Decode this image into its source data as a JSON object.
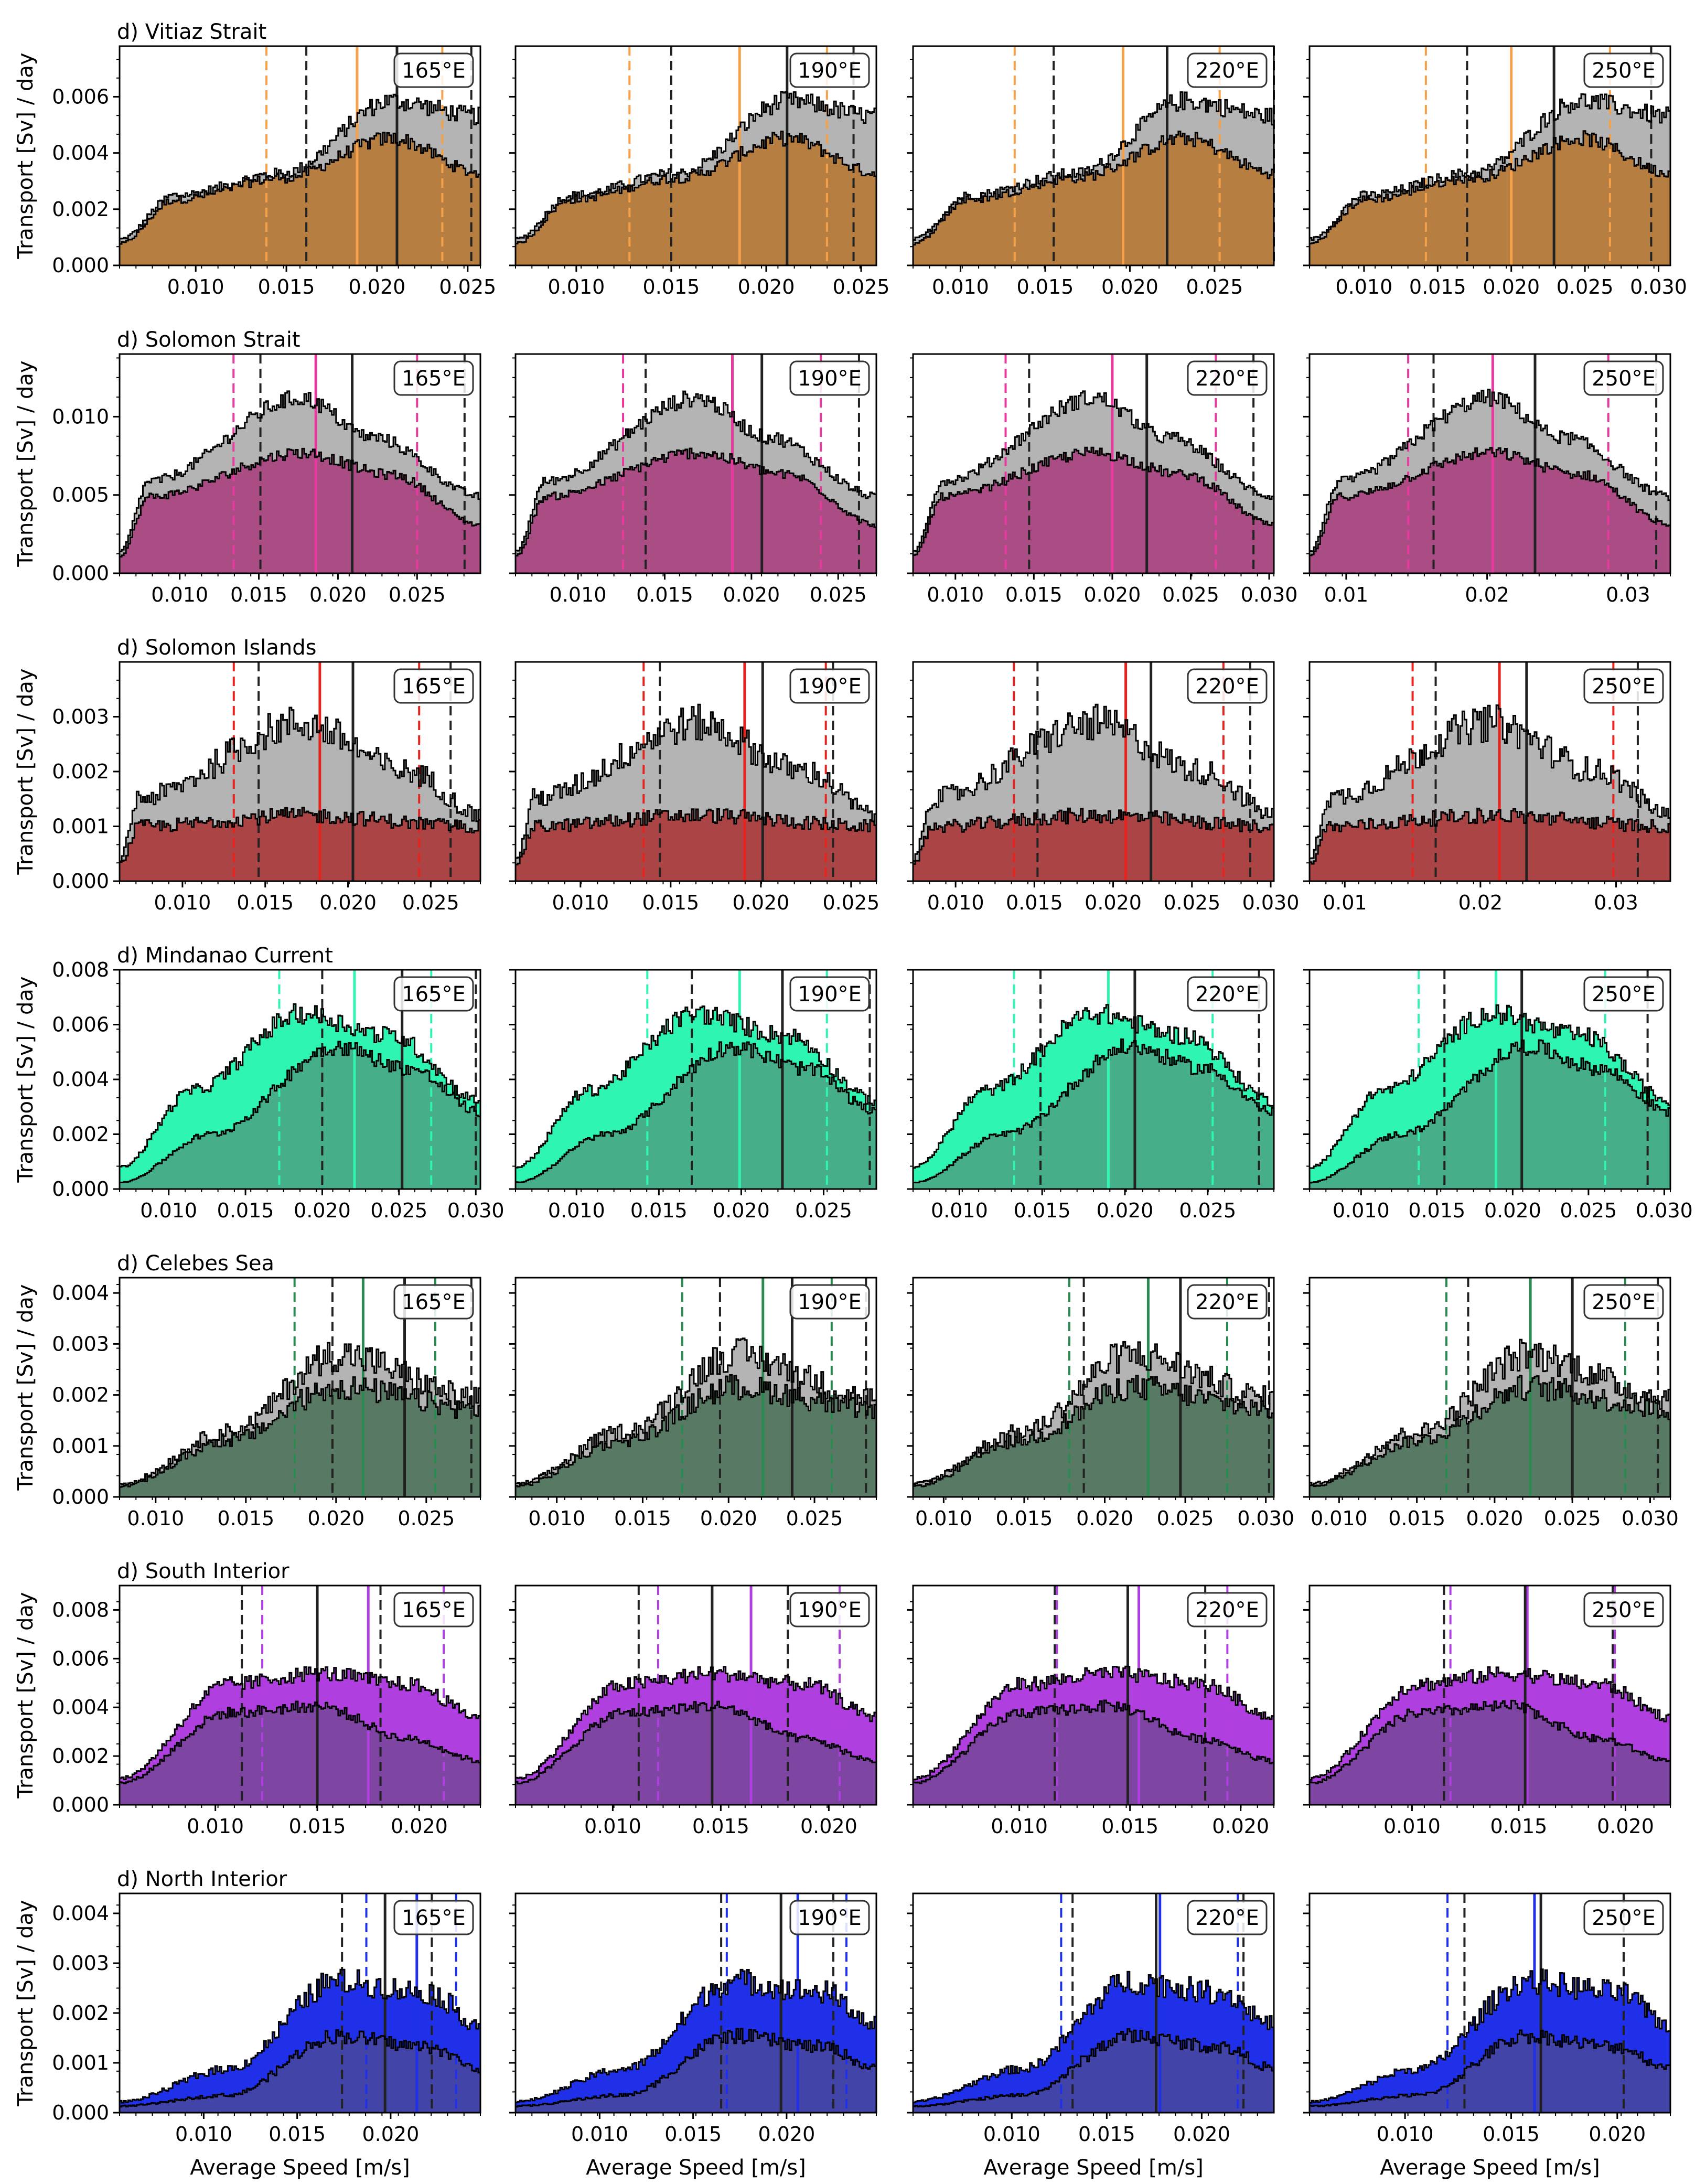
{
  "figure": {
    "shared_ylabel": "Transport [Sv] / day",
    "shared_xlabel": "Average Speed [m/s]",
    "column_labels": [
      "165°E",
      "190°E",
      "220°E",
      "250°E"
    ],
    "colors": {
      "grey_fill": "#b4b4b4",
      "outline": "#000000",
      "ref_line": "#222222"
    }
  },
  "chart_data": [
    {
      "type": "area",
      "row": 0,
      "title": "d) Vitiaz Strait",
      "color": "#f5a14a",
      "mix": "#b77e42",
      "yticks": [
        "0.000",
        "0.002",
        "0.004",
        "0.006"
      ],
      "ylim": [
        0,
        0.0078
      ],
      "panels": [
        {
          "label": "165°E",
          "xlim": [
            0.0058,
            0.0257
          ],
          "xticks": [
            "0.010",
            "0.015",
            "0.020",
            "0.025"
          ],
          "c_lines": [
            0.0139,
            0.0189,
            0.0236
          ],
          "k_lines": [
            0.0161,
            0.0211,
            0.0252
          ]
        },
        {
          "label": "190°E",
          "xlim": [
            0.0068,
            0.0258
          ],
          "xticks": [
            "0.010",
            "0.015",
            "0.020",
            "0.025"
          ],
          "c_lines": [
            0.0128,
            0.0186,
            0.0232
          ],
          "k_lines": [
            0.015,
            0.0211,
            0.0246
          ]
        },
        {
          "label": "220°E",
          "xlim": [
            0.0072,
            0.0285
          ],
          "xticks": [
            "0.010",
            "0.015",
            "0.020",
            "0.025"
          ],
          "c_lines": [
            0.0132,
            0.0196,
            0.0253
          ],
          "k_lines": [
            0.0155,
            0.0222,
            0.0285
          ]
        },
        {
          "label": "250°E",
          "xlim": [
            0.0063,
            0.0308
          ],
          "xticks": [
            "0.010",
            "0.015",
            "0.020",
            "0.025",
            "0.030"
          ],
          "c_lines": [
            0.0142,
            0.02,
            0.0267
          ],
          "k_lines": [
            0.017,
            0.0229,
            0.0295
          ]
        }
      ]
    },
    {
      "type": "area",
      "row": 1,
      "title": "d) Solomon Strait",
      "color": "#e8399e",
      "mix": "#ab4d85",
      "yticks": [
        "0.000",
        "0.005",
        "0.010"
      ],
      "ylim": [
        0,
        0.014
      ],
      "panels": [
        {
          "label": "165°E",
          "xlim": [
            0.0062,
            0.029
          ],
          "xticks": [
            "0.010",
            "0.015",
            "0.020",
            "0.025"
          ],
          "c_lines": [
            0.0134,
            0.0186,
            0.025
          ],
          "k_lines": [
            0.0151,
            0.0209,
            0.028
          ]
        },
        {
          "label": "190°E",
          "xlim": [
            0.0064,
            0.0272
          ],
          "xticks": [
            "0.010",
            "0.015",
            "0.020",
            "0.025"
          ],
          "c_lines": [
            0.0126,
            0.0189,
            0.024
          ],
          "k_lines": [
            0.0139,
            0.0206,
            0.0262
          ]
        },
        {
          "label": "220°E",
          "xlim": [
            0.0073,
            0.0303
          ],
          "xticks": [
            "0.010",
            "0.015",
            "0.020",
            "0.025",
            "0.030"
          ],
          "c_lines": [
            0.0132,
            0.02,
            0.0266
          ],
          "k_lines": [
            0.0147,
            0.0222,
            0.029
          ]
        },
        {
          "label": "250°E",
          "xlim": [
            0.0074,
            0.033
          ],
          "xticks": [
            "0.01",
            "0.02",
            "0.03"
          ],
          "c_lines": [
            0.0144,
            0.0204,
            0.0286
          ],
          "k_lines": [
            0.0162,
            0.0234,
            0.032
          ]
        }
      ]
    },
    {
      "type": "area",
      "row": 2,
      "title": "d) Solomon Islands",
      "color": "#e8231e",
      "mix": "#ab4545",
      "yticks": [
        "0.000",
        "0.001",
        "0.002",
        "0.003"
      ],
      "ylim": [
        0,
        0.004
      ],
      "panels": [
        {
          "label": "165°E",
          "xlim": [
            0.0062,
            0.028
          ],
          "xticks": [
            "0.010",
            "0.015",
            "0.020",
            "0.025"
          ],
          "c_lines": [
            0.0131,
            0.0183,
            0.0243
          ],
          "k_lines": [
            0.0146,
            0.0203,
            0.0262
          ]
        },
        {
          "label": "190°E",
          "xlim": [
            0.0064,
            0.0264
          ],
          "xticks": [
            "0.010",
            "0.015",
            "0.020",
            "0.025"
          ],
          "c_lines": [
            0.0135,
            0.0191,
            0.0236
          ],
          "k_lines": [
            0.0144,
            0.0201,
            0.024
          ]
        },
        {
          "label": "220°E",
          "xlim": [
            0.0073,
            0.0302
          ],
          "xticks": [
            "0.010",
            "0.015",
            "0.020",
            "0.025",
            "0.030"
          ],
          "c_lines": [
            0.0137,
            0.0208,
            0.027
          ],
          "k_lines": [
            0.0152,
            0.0224,
            0.0287
          ]
        },
        {
          "label": "250°E",
          "xlim": [
            0.0074,
            0.034
          ],
          "xticks": [
            "0.01",
            "0.02",
            "0.03"
          ],
          "c_lines": [
            0.015,
            0.0214,
            0.0298
          ],
          "k_lines": [
            0.0167,
            0.0234,
            0.0316
          ]
        }
      ]
    },
    {
      "type": "area",
      "row": 3,
      "title": "d) Mindanao Current",
      "color": "#2ef5b1",
      "mix": "#46ae88",
      "yticks": [
        "0.000",
        "0.002",
        "0.004",
        "0.006",
        "0.008"
      ],
      "ylim": [
        0,
        0.008
      ],
      "panels": [
        {
          "label": "165°E",
          "xlim": [
            0.0068,
            0.0303
          ],
          "xticks": [
            "0.010",
            "0.015",
            "0.020",
            "0.025",
            "0.030"
          ],
          "c_lines": [
            0.0172,
            0.0221,
            0.0271
          ],
          "k_lines": [
            0.02,
            0.0252,
            0.03
          ]
        },
        {
          "label": "190°E",
          "xlim": [
            0.0063,
            0.0282
          ],
          "xticks": [
            "0.010",
            "0.015",
            "0.020",
            "0.025"
          ],
          "c_lines": [
            0.0143,
            0.0199,
            0.0252
          ],
          "k_lines": [
            0.017,
            0.0225,
            0.0278
          ]
        },
        {
          "label": "220°E",
          "xlim": [
            0.0072,
            0.029
          ],
          "xticks": [
            "0.010",
            "0.015",
            "0.020",
            "0.025"
          ],
          "c_lines": [
            0.0133,
            0.019,
            0.0253
          ],
          "k_lines": [
            0.0149,
            0.0206,
            0.0281
          ]
        },
        {
          "label": "250°E",
          "xlim": [
            0.0066,
            0.0304
          ],
          "xticks": [
            "0.010",
            "0.015",
            "0.020",
            "0.025",
            "0.030"
          ],
          "c_lines": [
            0.0138,
            0.0189,
            0.0261
          ],
          "k_lines": [
            0.0155,
            0.0206,
            0.0289
          ]
        }
      ]
    },
    {
      "type": "area",
      "row": 4,
      "title": "d) Celebes Sea",
      "color": "#2b8a52",
      "mix": "#587a64",
      "yticks": [
        "0.000",
        "0.001",
        "0.002",
        "0.003",
        "0.004"
      ],
      "ylim": [
        0,
        0.0043
      ],
      "panels": [
        {
          "label": "165°E",
          "xlim": [
            0.008,
            0.028
          ],
          "xticks": [
            "0.010",
            "0.015",
            "0.020",
            "0.025"
          ],
          "c_lines": [
            0.0177,
            0.0215,
            0.0255
          ],
          "k_lines": [
            0.0198,
            0.0238,
            0.0275
          ]
        },
        {
          "label": "190°E",
          "xlim": [
            0.0076,
            0.0286
          ],
          "xticks": [
            "0.010",
            "0.015",
            "0.020",
            "0.025"
          ],
          "c_lines": [
            0.0173,
            0.022,
            0.026
          ],
          "k_lines": [
            0.0195,
            0.0237,
            0.028
          ]
        },
        {
          "label": "220°E",
          "xlim": [
            0.0081,
            0.0305
          ],
          "xticks": [
            "0.010",
            "0.015",
            "0.020",
            "0.025",
            "0.030"
          ],
          "c_lines": [
            0.0178,
            0.0227,
            0.0276
          ],
          "k_lines": [
            0.0187,
            0.0247,
            0.0302
          ]
        },
        {
          "label": "250°E",
          "xlim": [
            0.0081,
            0.0313
          ],
          "xticks": [
            "0.010",
            "0.015",
            "0.020",
            "0.025",
            "0.030"
          ],
          "c_lines": [
            0.0169,
            0.0223,
            0.0284
          ],
          "k_lines": [
            0.0183,
            0.025,
            0.0305
          ]
        }
      ]
    },
    {
      "type": "area",
      "row": 5,
      "title": "d) South Interior",
      "color": "#b03fe0",
      "mix": "#7e46a2",
      "yticks": [
        "0.000",
        "0.002",
        "0.004",
        "0.006",
        "0.008"
      ],
      "ylim": [
        0,
        0.009
      ],
      "panels": [
        {
          "label": "165°E",
          "xlim": [
            0.0053,
            0.023
          ],
          "xticks": [
            "0.010",
            "0.015",
            "0.020"
          ],
          "c_lines": [
            0.0123,
            0.0175,
            0.0212
          ],
          "k_lines": [
            0.0113,
            0.015,
            0.0181
          ]
        },
        {
          "label": "190°E",
          "xlim": [
            0.0055,
            0.0222
          ],
          "xticks": [
            "0.010",
            "0.015",
            "0.020"
          ],
          "c_lines": [
            0.0121,
            0.0164,
            0.0205
          ],
          "k_lines": [
            0.0112,
            0.0146,
            0.0181
          ]
        },
        {
          "label": "220°E",
          "xlim": [
            0.0052,
            0.0215
          ],
          "xticks": [
            "0.010",
            "0.015",
            "0.020"
          ],
          "c_lines": [
            0.0117,
            0.0154,
            0.0194
          ],
          "k_lines": [
            0.0116,
            0.0149,
            0.0184
          ]
        },
        {
          "label": "250°E",
          "xlim": [
            0.0052,
            0.0221
          ],
          "xticks": [
            "0.010",
            "0.015",
            "0.020"
          ],
          "c_lines": [
            0.0118,
            0.0154,
            0.0195
          ],
          "k_lines": [
            0.0115,
            0.0153,
            0.0194
          ]
        }
      ]
    },
    {
      "type": "area",
      "row": 6,
      "title": "d) North Interior",
      "color": "#1f30e8",
      "mix": "#4244a8",
      "yticks": [
        "0.000",
        "0.001",
        "0.002",
        "0.003",
        "0.004"
      ],
      "ylim": [
        0,
        0.0044
      ],
      "panels": [
        {
          "label": "165°E",
          "xlim": [
            0.0055,
            0.0248
          ],
          "xticks": [
            "0.010",
            "0.015",
            "0.020"
          ],
          "c_lines": [
            0.0187,
            0.0214,
            0.0235
          ],
          "k_lines": [
            0.0174,
            0.0197,
            0.0222
          ]
        },
        {
          "label": "190°E",
          "xlim": [
            0.0055,
            0.0248
          ],
          "xticks": [
            "0.010",
            "0.015",
            "0.020"
          ],
          "c_lines": [
            0.0168,
            0.0206,
            0.0232
          ],
          "k_lines": [
            0.0165,
            0.0197,
            0.0225
          ]
        },
        {
          "label": "220°E",
          "xlim": [
            0.0048,
            0.0238
          ],
          "xticks": [
            "0.010",
            "0.015",
            "0.020"
          ],
          "c_lines": [
            0.0126,
            0.0178,
            0.0219
          ],
          "k_lines": [
            0.0132,
            0.0176,
            0.0222
          ]
        },
        {
          "label": "250°E",
          "xlim": [
            0.0055,
            0.0225
          ],
          "xticks": [
            "0.010",
            "0.015",
            "0.020"
          ],
          "c_lines": [
            0.012,
            0.0161,
            0.0203
          ],
          "k_lines": [
            0.0128,
            0.0164,
            0.0203
          ]
        }
      ]
    }
  ]
}
